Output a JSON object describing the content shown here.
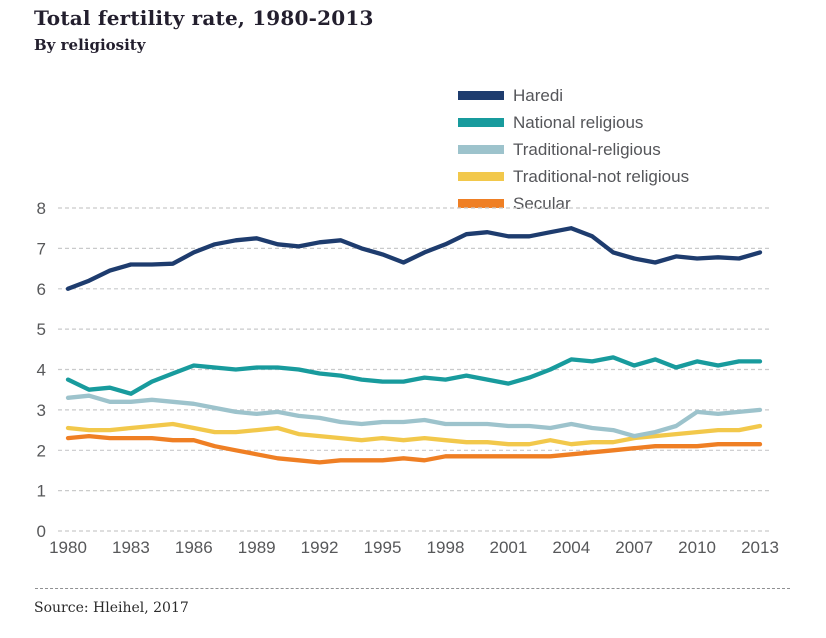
{
  "chart_data": {
    "type": "line",
    "title": "Total fertility rate, 1980-2013",
    "subtitle": "By religiosity",
    "source": "Source: Hleihel, 2017",
    "ylim": [
      0,
      8
    ],
    "y_ticks": [
      0,
      1,
      2,
      3,
      4,
      5,
      6,
      7,
      8
    ],
    "grid": "dashed-horizontal",
    "legend_position": "top-right",
    "years": [
      1980,
      1981,
      1982,
      1983,
      1984,
      1985,
      1986,
      1987,
      1988,
      1989,
      1990,
      1991,
      1992,
      1993,
      1994,
      1995,
      1996,
      1997,
      1998,
      1999,
      2000,
      2001,
      2002,
      2003,
      2004,
      2005,
      2006,
      2007,
      2008,
      2009,
      2010,
      2011,
      2012,
      2013
    ],
    "x_tick_years": [
      1980,
      1983,
      1986,
      1989,
      1992,
      1995,
      1998,
      2001,
      2004,
      2007,
      2010,
      2013
    ],
    "series": [
      {
        "id": "haredi",
        "name": "Haredi",
        "color": "#1e3c6e",
        "values": [
          6.0,
          6.2,
          6.45,
          6.6,
          6.6,
          6.62,
          6.9,
          7.1,
          7.2,
          7.25,
          7.1,
          7.05,
          7.15,
          7.2,
          7.0,
          6.85,
          6.65,
          6.9,
          7.1,
          7.35,
          7.4,
          7.3,
          7.3,
          7.4,
          7.5,
          7.3,
          6.9,
          6.75,
          6.65,
          6.8,
          6.75,
          6.78,
          6.75,
          6.9
        ]
      },
      {
        "id": "national-religious",
        "name": "National religious",
        "color": "#189b9d",
        "values": [
          3.75,
          3.5,
          3.55,
          3.4,
          3.7,
          3.9,
          4.1,
          4.05,
          4.0,
          4.05,
          4.05,
          4.0,
          3.9,
          3.85,
          3.75,
          3.7,
          3.7,
          3.8,
          3.75,
          3.85,
          3.75,
          3.65,
          3.8,
          4.0,
          4.25,
          4.2,
          4.3,
          4.1,
          4.25,
          4.05,
          4.2,
          4.1,
          4.2,
          4.2
        ]
      },
      {
        "id": "traditional-religious",
        "name": "Traditional-religious",
        "color": "#9dc3cc",
        "values": [
          3.3,
          3.35,
          3.2,
          3.2,
          3.25,
          3.2,
          3.15,
          3.05,
          2.95,
          2.9,
          2.95,
          2.85,
          2.8,
          2.7,
          2.65,
          2.7,
          2.7,
          2.75,
          2.65,
          2.65,
          2.65,
          2.6,
          2.6,
          2.55,
          2.65,
          2.55,
          2.5,
          2.35,
          2.45,
          2.6,
          2.95,
          2.9,
          2.95,
          3.0
        ]
      },
      {
        "id": "traditional-not-religious",
        "name": "Traditional-not religious",
        "color": "#f2c84b",
        "values": [
          2.55,
          2.5,
          2.5,
          2.55,
          2.6,
          2.65,
          2.55,
          2.45,
          2.45,
          2.5,
          2.55,
          2.4,
          2.35,
          2.3,
          2.25,
          2.3,
          2.25,
          2.3,
          2.25,
          2.2,
          2.2,
          2.15,
          2.15,
          2.25,
          2.15,
          2.2,
          2.2,
          2.3,
          2.35,
          2.4,
          2.45,
          2.5,
          2.5,
          2.6
        ]
      },
      {
        "id": "secular",
        "name": "Secular",
        "color": "#ef7f24",
        "values": [
          2.3,
          2.35,
          2.3,
          2.3,
          2.3,
          2.25,
          2.25,
          2.1,
          2.0,
          1.9,
          1.8,
          1.75,
          1.7,
          1.75,
          1.75,
          1.75,
          1.8,
          1.75,
          1.85,
          1.85,
          1.85,
          1.85,
          1.85,
          1.85,
          1.9,
          1.95,
          2.0,
          2.05,
          2.1,
          2.1,
          2.1,
          2.15,
          2.15,
          2.15
        ]
      }
    ]
  }
}
